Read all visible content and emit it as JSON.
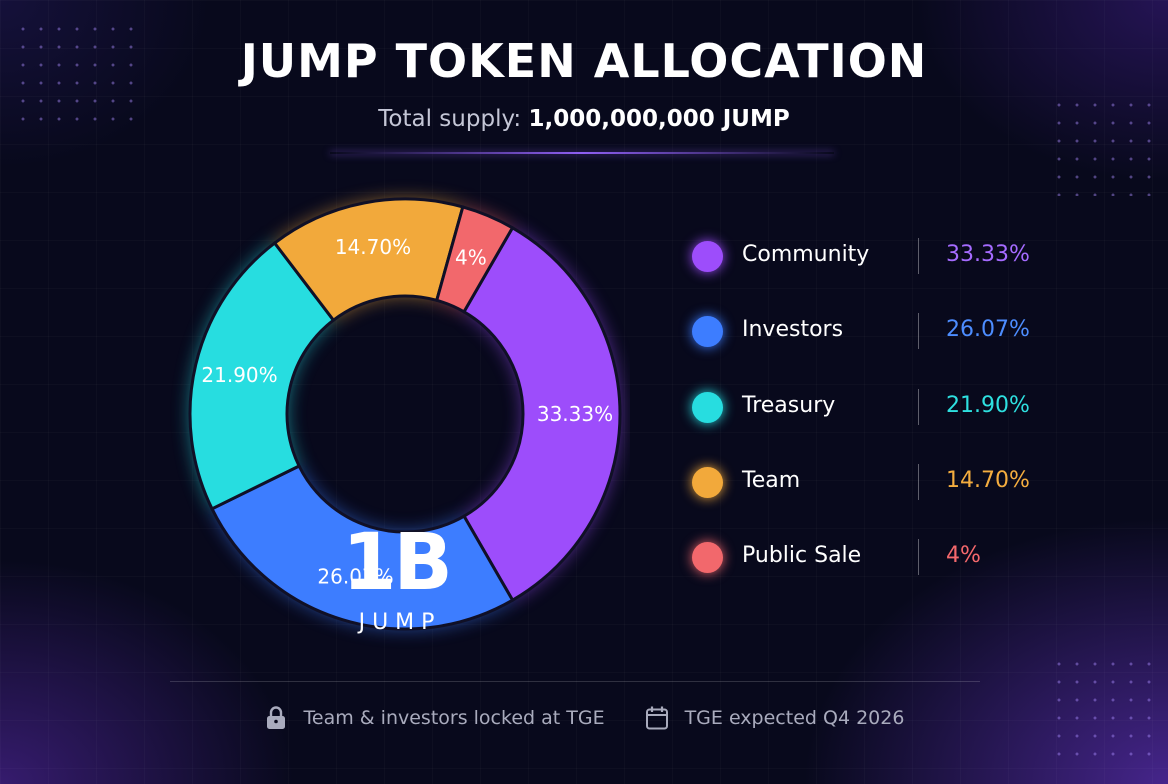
{
  "header": {
    "title": "JUMP TOKEN ALLOCATION",
    "supply_label": "Total supply:",
    "supply_value": "1,000,000,000 JUMP"
  },
  "center": {
    "value": "1B",
    "unit": "JUMP"
  },
  "chart_data": {
    "type": "pie",
    "variant": "donut",
    "title": "JUMP TOKEN ALLOCATION",
    "subtitle": "Total supply: 1,000,000,000 JUMP",
    "categories": [
      "Community",
      "Investors",
      "Treasury",
      "Team",
      "Public Sale"
    ],
    "values": [
      33.33,
      26.07,
      21.9,
      14.7,
      4
    ],
    "labels": [
      "33.33%",
      "26.07%",
      "21.90%",
      "14.70%",
      "4%"
    ],
    "colors": [
      "#9d4dfb",
      "#3d7dff",
      "#27dde0",
      "#f2a93b",
      "#f2686c"
    ],
    "legend_position": "right",
    "start_angle_deg": 300,
    "direction": "clockwise"
  },
  "legend": [
    {
      "name": "Community",
      "value": "33.33%",
      "color": "#9d4dfb",
      "text_color": "#a56bff"
    },
    {
      "name": "Investors",
      "value": "26.07%",
      "color": "#3d7dff",
      "text_color": "#4d8dff"
    },
    {
      "name": "Treasury",
      "value": "21.90%",
      "color": "#27dde0",
      "text_color": "#2ee0e0"
    },
    {
      "name": "Team",
      "value": "14.70%",
      "color": "#f2a93b",
      "text_color": "#f4ad3f"
    },
    {
      "name": "Public Sale",
      "value": "4%",
      "color": "#f2686c",
      "text_color": "#f4686c"
    }
  ],
  "footer": {
    "lock_text": "Team & investors locked at TGE",
    "tge_text": "TGE expected Q4 2026",
    "icons": [
      "lock-icon",
      "calendar-icon"
    ]
  }
}
